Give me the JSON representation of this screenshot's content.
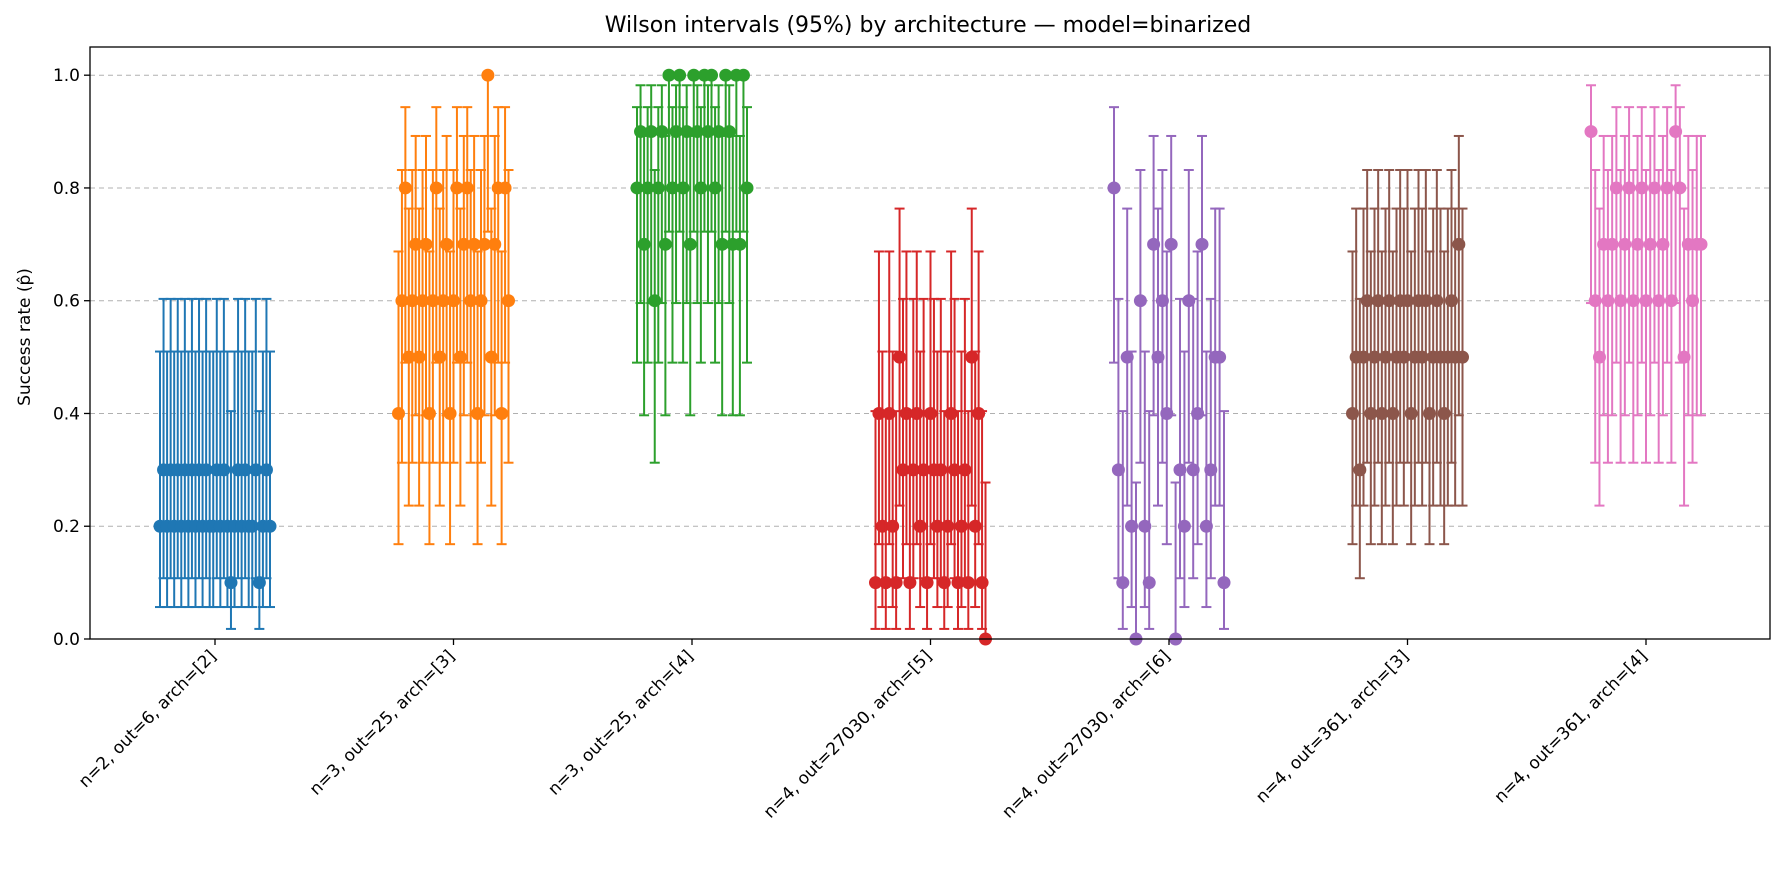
{
  "chart_data": {
    "type": "scatter",
    "title": "Wilson intervals (95%) by architecture — model=binarized",
    "xlabel": "",
    "ylabel": "Success rate (p̂)",
    "ylim": [
      0.0,
      1.05
    ],
    "yticks": [
      0.0,
      0.2,
      0.4,
      0.6,
      0.8,
      1.0
    ],
    "ytick_labels": [
      "0.0",
      "0.2",
      "0.4",
      "0.6",
      "0.8",
      "1.0"
    ],
    "grid": "horizontal dashed",
    "legend": "none",
    "trials_per_point": 10,
    "categories": [
      "n=2, out=6, arch=[2]",
      "n=3, out=25, arch=[3]",
      "n=3, out=25, arch=[4]",
      "n=4, out=27030, arch=[5]",
      "n=4, out=27030, arch=[6]",
      "n=4, out=361, arch=[3]",
      "n=4, out=361, arch=[4]"
    ],
    "series": [
      {
        "category": "n=2, out=6, arch=[2]",
        "color": "#1f77b4",
        "values": [
          0.2,
          0.3,
          0.2,
          0.3,
          0.2,
          0.3,
          0.2,
          0.3,
          0.2,
          0.3,
          0.2,
          0.3,
          0.2,
          0.3,
          0.2,
          0.2,
          0.3,
          0.2,
          0.3,
          0.2,
          0.1,
          0.2,
          0.3,
          0.2,
          0.3,
          0.2,
          0.2,
          0.3,
          0.1,
          0.2,
          0.3,
          0.2
        ]
      },
      {
        "category": "n=3, out=25, arch=[3]",
        "color": "#ff7f0e",
        "values": [
          0.4,
          0.6,
          0.8,
          0.5,
          0.6,
          0.7,
          0.5,
          0.6,
          0.7,
          0.4,
          0.6,
          0.8,
          0.5,
          0.6,
          0.7,
          0.4,
          0.6,
          0.8,
          0.5,
          0.7,
          0.8,
          0.6,
          0.7,
          0.4,
          0.6,
          0.7,
          1.0,
          0.5,
          0.7,
          0.8,
          0.4,
          0.8,
          0.6
        ]
      },
      {
        "category": "n=3, out=25, arch=[4]",
        "color": "#2ca02c",
        "values": [
          0.8,
          0.9,
          0.7,
          0.8,
          0.9,
          0.6,
          0.8,
          0.9,
          0.7,
          1.0,
          0.8,
          0.9,
          1.0,
          0.8,
          0.9,
          0.7,
          1.0,
          0.9,
          0.8,
          1.0,
          0.9,
          1.0,
          0.8,
          0.9,
          0.7,
          1.0,
          0.9,
          0.7,
          1.0,
          0.7,
          1.0,
          0.8
        ]
      },
      {
        "category": "n=4, out=27030, arch=[5]",
        "color": "#d62728",
        "values": [
          0.1,
          0.4,
          0.2,
          0.1,
          0.4,
          0.2,
          0.1,
          0.5,
          0.3,
          0.4,
          0.1,
          0.3,
          0.4,
          0.2,
          0.3,
          0.1,
          0.4,
          0.3,
          0.2,
          0.3,
          0.1,
          0.2,
          0.4,
          0.3,
          0.1,
          0.2,
          0.3,
          0.1,
          0.5,
          0.2,
          0.4,
          0.1,
          0.0
        ]
      },
      {
        "category": "n=4, out=27030, arch=[6]",
        "color": "#9467bd",
        "values": [
          0.8,
          0.3,
          0.1,
          0.5,
          0.2,
          0.0,
          0.6,
          0.2,
          0.1,
          0.7,
          0.5,
          0.6,
          0.4,
          0.7,
          0.0,
          0.3,
          0.2,
          0.6,
          0.3,
          0.4,
          0.7,
          0.2,
          0.3,
          0.5,
          0.5,
          0.1
        ]
      },
      {
        "category": "n=4, out=361, arch=[3]",
        "color": "#8c564b",
        "values": [
          0.4,
          0.5,
          0.3,
          0.5,
          0.6,
          0.4,
          0.5,
          0.6,
          0.4,
          0.5,
          0.6,
          0.4,
          0.5,
          0.6,
          0.5,
          0.6,
          0.4,
          0.5,
          0.6,
          0.5,
          0.6,
          0.4,
          0.5,
          0.6,
          0.5,
          0.4,
          0.5,
          0.6,
          0.5,
          0.7,
          0.5
        ]
      },
      {
        "category": "n=4, out=361, arch=[4]",
        "color": "#e377c2",
        "values": [
          0.9,
          0.6,
          0.5,
          0.7,
          0.6,
          0.7,
          0.8,
          0.6,
          0.7,
          0.8,
          0.6,
          0.7,
          0.8,
          0.6,
          0.7,
          0.8,
          0.6,
          0.7,
          0.8,
          0.6,
          0.9,
          0.8,
          0.5,
          0.7,
          0.6,
          0.7,
          0.7
        ]
      }
    ]
  }
}
